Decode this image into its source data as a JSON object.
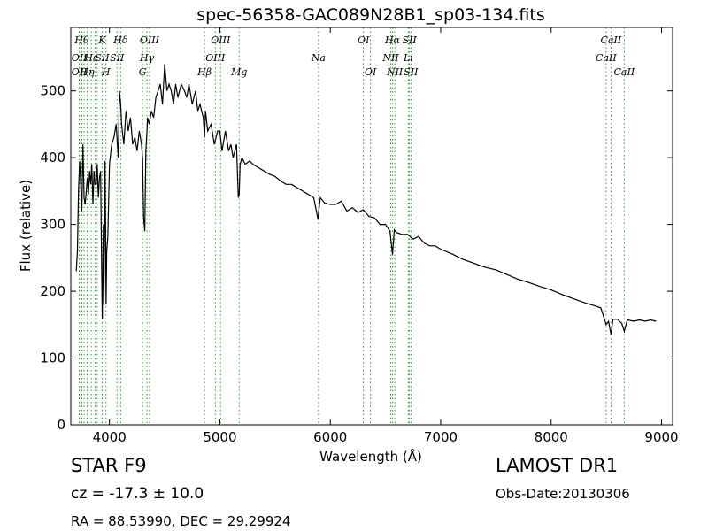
{
  "chart_data": {
    "type": "line",
    "title": "spec-56358-GAC089N28B1_sp03-134.fits",
    "xlabel": "Wavelength (Å)",
    "ylabel": "Flux (relative)",
    "xlim": [
      3650,
      9100
    ],
    "ylim": [
      0,
      595
    ],
    "xticks": [
      4000,
      5000,
      6000,
      7000,
      8000,
      9000
    ],
    "yticks": [
      0,
      100,
      200,
      300,
      400,
      500
    ],
    "grid": false,
    "line_color": "#000000",
    "marker_color": "#2ca02c",
    "series": [
      {
        "x": [
          3700,
          3710,
          3720,
          3730,
          3740,
          3750,
          3760,
          3770,
          3780,
          3790,
          3800,
          3810,
          3820,
          3830,
          3840,
          3850,
          3860,
          3870,
          3880,
          3890,
          3900,
          3910,
          3920,
          3930,
          3935,
          3945,
          3950,
          3960,
          3965,
          3970,
          3975,
          3985,
          4000,
          4020,
          4040,
          4060,
          4080,
          4090,
          4102,
          4110,
          4130,
          4150,
          4170,
          4190,
          4210,
          4230,
          4250,
          4270,
          4290,
          4300,
          4310,
          4320,
          4330,
          4340,
          4345,
          4360,
          4380,
          4400,
          4420,
          4440,
          4460,
          4480,
          4500,
          4520,
          4540,
          4560,
          4580,
          4600,
          4620,
          4650,
          4680,
          4700,
          4720,
          4750,
          4780,
          4800,
          4820,
          4850,
          4861,
          4870,
          4890,
          4920,
          4950,
          4980,
          5000,
          5020,
          5050,
          5080,
          5100,
          5120,
          5150,
          5167,
          5175,
          5183,
          5200,
          5230,
          5270,
          5300,
          5350,
          5400,
          5450,
          5500,
          5550,
          5600,
          5650,
          5700,
          5750,
          5800,
          5850,
          5889,
          5895,
          5910,
          5950,
          6000,
          6050,
          6100,
          6150,
          6200,
          6250,
          6300,
          6350,
          6400,
          6450,
          6500,
          6540,
          6563,
          6580,
          6600,
          6650,
          6700,
          6750,
          6800,
          6850,
          6900,
          6950,
          7000,
          7100,
          7200,
          7300,
          7400,
          7500,
          7600,
          7700,
          7800,
          7900,
          8000,
          8100,
          8200,
          8300,
          8400,
          8450,
          8498,
          8520,
          8542,
          8560,
          8600,
          8640,
          8662,
          8690,
          8750,
          8800,
          8850,
          8900,
          8950
        ],
        "y": [
          230,
          260,
          350,
          395,
          360,
          320,
          420,
          340,
          330,
          350,
          370,
          345,
          380,
          360,
          390,
          330,
          380,
          360,
          360,
          390,
          340,
          370,
          380,
          230,
          158,
          300,
          180,
          395,
          300,
          180,
          260,
          280,
          390,
          420,
          430,
          450,
          400,
          500,
          480,
          450,
          420,
          470,
          440,
          460,
          420,
          430,
          410,
          440,
          420,
          400,
          310,
          290,
          410,
          440,
          460,
          450,
          470,
          460,
          490,
          500,
          510,
          480,
          540,
          500,
          510,
          500,
          480,
          510,
          490,
          510,
          500,
          490,
          510,
          480,
          500,
          470,
          480,
          460,
          430,
          470,
          440,
          450,
          420,
          440,
          440,
          410,
          440,
          410,
          420,
          400,
          420,
          340,
          345,
          390,
          400,
          390,
          395,
          390,
          385,
          380,
          375,
          372,
          365,
          360,
          360,
          355,
          350,
          345,
          340,
          307,
          320,
          340,
          332,
          330,
          330,
          335,
          320,
          325,
          318,
          322,
          312,
          310,
          300,
          300,
          290,
          255,
          292,
          288,
          285,
          285,
          278,
          282,
          272,
          268,
          268,
          263,
          256,
          248,
          242,
          236,
          232,
          225,
          218,
          213,
          207,
          202,
          195,
          189,
          183,
          178,
          175,
          150,
          155,
          135,
          158,
          158,
          152,
          140,
          157,
          155,
          157,
          155,
          157,
          155
        ]
      }
    ],
    "line_markers": [
      {
        "x": 3727,
        "label": "OII",
        "row": 1
      },
      {
        "x": 3727,
        "label": "OII",
        "row": 2
      },
      {
        "x": 3750,
        "label": "Hθ",
        "row": 0
      },
      {
        "x": 3771,
        "label": "",
        "row": -1
      },
      {
        "x": 3798,
        "label": "Hη",
        "row": 2
      },
      {
        "x": 3835,
        "label": "Hε",
        "row": 1
      },
      {
        "x": 3869,
        "label": "",
        "row": -1
      },
      {
        "x": 3889,
        "label": "",
        "row": -1
      },
      {
        "x": 3934,
        "label": "K",
        "row": 0
      },
      {
        "x": 3934,
        "label": "SII",
        "row": 1
      },
      {
        "x": 3969,
        "label": "H",
        "row": 2
      },
      {
        "x": 4069,
        "label": "SII",
        "row": 1
      },
      {
        "x": 4102,
        "label": "Hδ",
        "row": 0
      },
      {
        "x": 4300,
        "label": "G",
        "row": 2
      },
      {
        "x": 4340,
        "label": "Hγ",
        "row": 1
      },
      {
        "x": 4363,
        "label": "OIII",
        "row": 0
      },
      {
        "x": 4861,
        "label": "Hβ",
        "row": 2
      },
      {
        "x": 4959,
        "label": "OIII",
        "row": 1
      },
      {
        "x": 5007,
        "label": "OIII",
        "row": 0
      },
      {
        "x": 5175,
        "label": "Mg",
        "row": 2
      },
      {
        "x": 5893,
        "label": "Na",
        "row": 1
      },
      {
        "x": 6300,
        "label": "OI",
        "row": 0
      },
      {
        "x": 6364,
        "label": "OI",
        "row": 2
      },
      {
        "x": 6548,
        "label": "NII",
        "row": 1
      },
      {
        "x": 6563,
        "label": "Hα",
        "row": 0
      },
      {
        "x": 6584,
        "label": "NII",
        "row": 2
      },
      {
        "x": 6707,
        "label": "Li",
        "row": 1
      },
      {
        "x": 6717,
        "label": "SII",
        "row": 0
      },
      {
        "x": 6731,
        "label": "SII",
        "row": 2
      },
      {
        "x": 8498,
        "label": "CaII",
        "row": 1
      },
      {
        "x": 8542,
        "label": "CaII",
        "row": 0
      },
      {
        "x": 8662,
        "label": "CaII",
        "row": 2
      }
    ]
  },
  "info": {
    "class_label": "STAR   F9",
    "survey": "LAMOST DR1",
    "redshift": "cz = -17.3 ± 10.0",
    "obs_date": "Obs-Date:20130306",
    "coords": "RA = 88.53990, DEC = 29.29924"
  }
}
